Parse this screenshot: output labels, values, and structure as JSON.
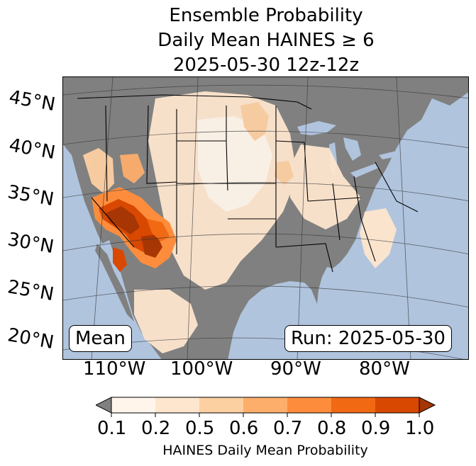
{
  "title": {
    "line1": "Ensemble Probability",
    "line2": "Daily Mean HAINES ≥ 6",
    "line3": "2025-05-30 12z-12z"
  },
  "map": {
    "left_badge": "Mean",
    "right_badge": "Run: 2025-05-30",
    "lat_labels": [
      "45°N",
      "40°N",
      "35°N",
      "30°N",
      "25°N",
      "20°N"
    ],
    "lon_labels": [
      "110°W",
      "100°W",
      "90°W",
      "80°W"
    ],
    "colors": {
      "ocean": "#b0c4de",
      "land_no_data": "#808080",
      "high_probability": "#b34000"
    }
  },
  "colorbar": {
    "title": "HAINES Daily Mean Probability",
    "ticks": [
      "0.1",
      "0.2",
      "0.5",
      "0.6",
      "0.7",
      "0.8",
      "0.9",
      "1.0"
    ],
    "colors": [
      "#fff5eb",
      "#fee6ce",
      "#fdd0a2",
      "#fdae6b",
      "#fd8d3c",
      "#f16913",
      "#d94801",
      "#a63603"
    ],
    "under_color": "#808080"
  }
}
